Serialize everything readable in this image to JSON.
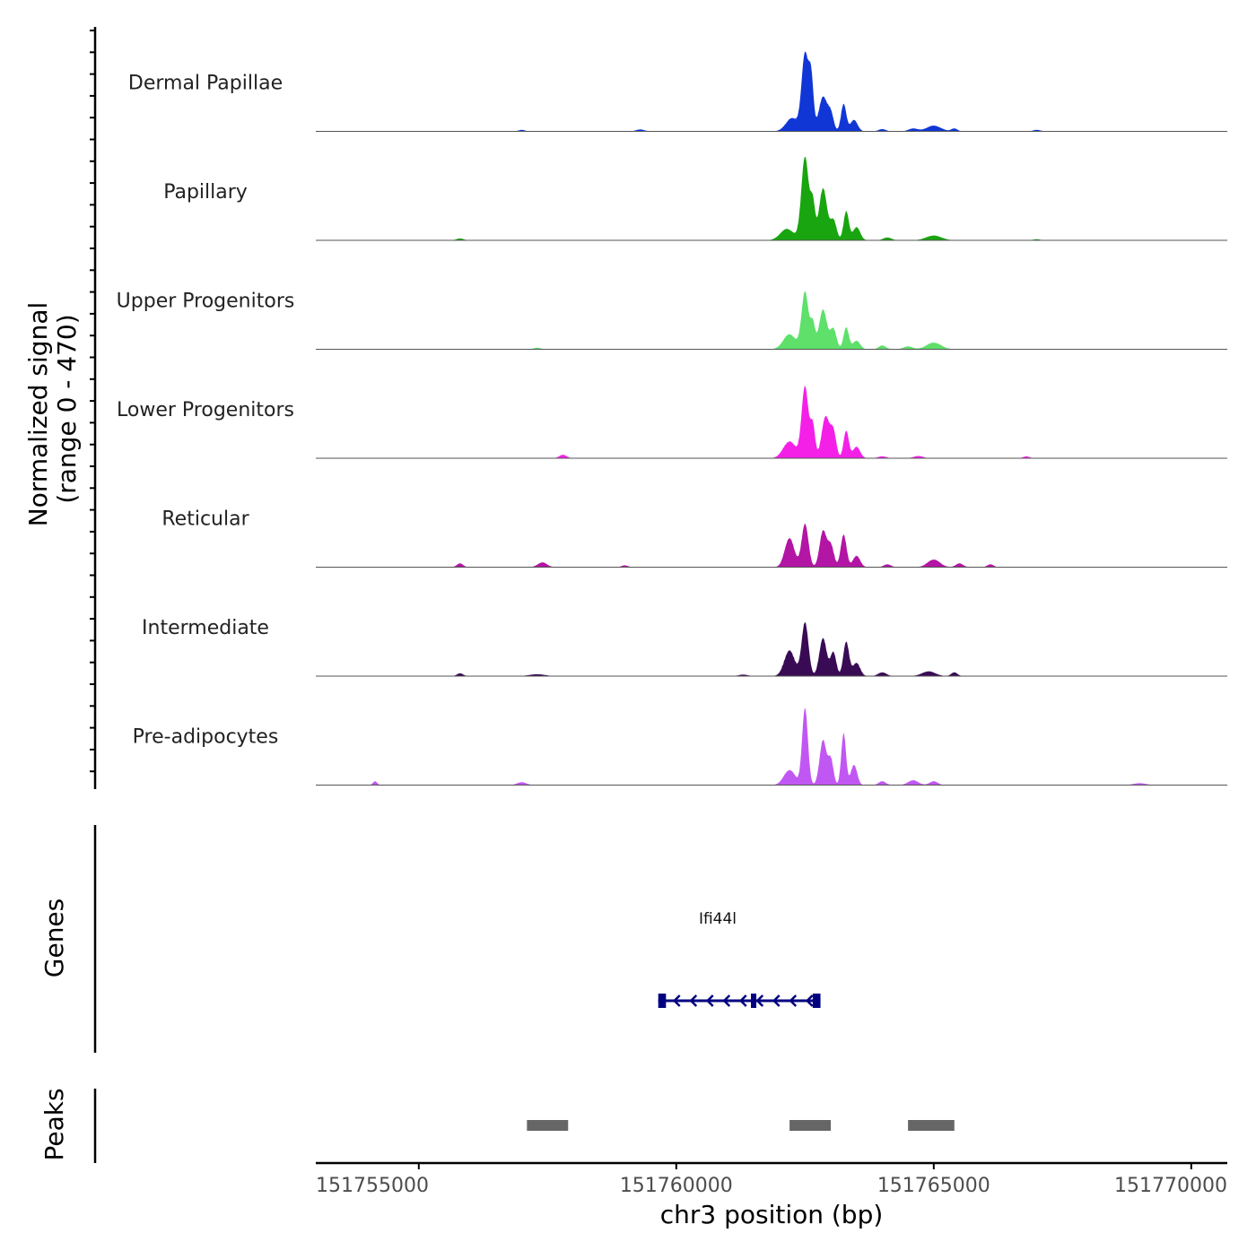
{
  "chart_data": {
    "type": "area",
    "y_axis_title": "Normalized signal",
    "y_axis_subtitle": "(range 0 - 470)",
    "y_range": [
      0,
      470
    ],
    "x_axis_title": "chr3 position (bp)",
    "x_range": [
      151753000,
      151770700
    ],
    "x_ticks": [
      151755000,
      151760000,
      151765000,
      151770000
    ],
    "x_tick_labels": [
      "151755000",
      "151760000",
      "151765000",
      "151770000"
    ],
    "tracks": [
      {
        "name": "Dermal Papillae",
        "color": "#1136d6",
        "peaks": [
          {
            "pos": 151762250,
            "height": 70,
            "width": 120
          },
          {
            "pos": 151762500,
            "height": 430,
            "width": 65
          },
          {
            "pos": 151762620,
            "height": 280,
            "width": 45
          },
          {
            "pos": 151762850,
            "height": 190,
            "width": 80
          },
          {
            "pos": 151763000,
            "height": 90,
            "width": 55
          },
          {
            "pos": 151763250,
            "height": 150,
            "width": 50
          },
          {
            "pos": 151763450,
            "height": 60,
            "width": 70
          },
          {
            "pos": 151764000,
            "height": 12,
            "width": 70
          },
          {
            "pos": 151764600,
            "height": 15,
            "width": 90
          },
          {
            "pos": 151765000,
            "height": 30,
            "width": 140
          },
          {
            "pos": 151765400,
            "height": 15,
            "width": 60
          },
          {
            "pos": 151757000,
            "height": 8,
            "width": 60
          },
          {
            "pos": 151759300,
            "height": 10,
            "width": 80
          },
          {
            "pos": 151767000,
            "height": 8,
            "width": 70
          }
        ]
      },
      {
        "name": "Papillary",
        "color": "#18a50f",
        "peaks": [
          {
            "pos": 151762150,
            "height": 60,
            "width": 130
          },
          {
            "pos": 151762500,
            "height": 470,
            "width": 70
          },
          {
            "pos": 151762650,
            "height": 200,
            "width": 45
          },
          {
            "pos": 151762850,
            "height": 290,
            "width": 75
          },
          {
            "pos": 151763050,
            "height": 110,
            "width": 60
          },
          {
            "pos": 151763300,
            "height": 160,
            "width": 50
          },
          {
            "pos": 151763500,
            "height": 70,
            "width": 70
          },
          {
            "pos": 151764100,
            "height": 15,
            "width": 80
          },
          {
            "pos": 151765000,
            "height": 25,
            "width": 150
          },
          {
            "pos": 151755800,
            "height": 10,
            "width": 70
          },
          {
            "pos": 151767000,
            "height": 6,
            "width": 70
          }
        ]
      },
      {
        "name": "Upper Progenitors",
        "color": "#5ee06a",
        "peaks": [
          {
            "pos": 151762200,
            "height": 80,
            "width": 120
          },
          {
            "pos": 151762500,
            "height": 320,
            "width": 65
          },
          {
            "pos": 151762650,
            "height": 140,
            "width": 45
          },
          {
            "pos": 151762850,
            "height": 220,
            "width": 75
          },
          {
            "pos": 151763050,
            "height": 110,
            "width": 60
          },
          {
            "pos": 151763300,
            "height": 120,
            "width": 50
          },
          {
            "pos": 151763500,
            "height": 45,
            "width": 70
          },
          {
            "pos": 151764000,
            "height": 20,
            "width": 70
          },
          {
            "pos": 151764500,
            "height": 15,
            "width": 90
          },
          {
            "pos": 151765000,
            "height": 35,
            "width": 140
          },
          {
            "pos": 151757300,
            "height": 8,
            "width": 70
          }
        ]
      },
      {
        "name": "Lower Progenitors",
        "color": "#f420e8",
        "peaks": [
          {
            "pos": 151762200,
            "height": 90,
            "width": 120
          },
          {
            "pos": 151762500,
            "height": 400,
            "width": 65
          },
          {
            "pos": 151762650,
            "height": 180,
            "width": 45
          },
          {
            "pos": 151762900,
            "height": 230,
            "width": 75
          },
          {
            "pos": 151763050,
            "height": 140,
            "width": 55
          },
          {
            "pos": 151763300,
            "height": 150,
            "width": 50
          },
          {
            "pos": 151763500,
            "height": 60,
            "width": 70
          },
          {
            "pos": 151764000,
            "height": 10,
            "width": 80
          },
          {
            "pos": 151764700,
            "height": 12,
            "width": 90
          },
          {
            "pos": 151757800,
            "height": 18,
            "width": 70
          },
          {
            "pos": 151766800,
            "height": 10,
            "width": 60
          }
        ]
      },
      {
        "name": "Reticular",
        "color": "#b315a5",
        "peaks": [
          {
            "pos": 151762200,
            "height": 160,
            "width": 90
          },
          {
            "pos": 151762500,
            "height": 240,
            "width": 65
          },
          {
            "pos": 151762850,
            "height": 200,
            "width": 65
          },
          {
            "pos": 151763000,
            "height": 120,
            "width": 60
          },
          {
            "pos": 151763250,
            "height": 180,
            "width": 55
          },
          {
            "pos": 151763500,
            "height": 60,
            "width": 70
          },
          {
            "pos": 151764100,
            "height": 15,
            "width": 70
          },
          {
            "pos": 151765000,
            "height": 40,
            "width": 120
          },
          {
            "pos": 151765500,
            "height": 20,
            "width": 70
          },
          {
            "pos": 151766100,
            "height": 15,
            "width": 60
          },
          {
            "pos": 151755800,
            "height": 20,
            "width": 60
          },
          {
            "pos": 151757400,
            "height": 25,
            "width": 90
          },
          {
            "pos": 151759000,
            "height": 10,
            "width": 60
          }
        ]
      },
      {
        "name": "Intermediate",
        "color": "#3a0b55",
        "peaks": [
          {
            "pos": 151762200,
            "height": 140,
            "width": 100
          },
          {
            "pos": 151762500,
            "height": 300,
            "width": 65
          },
          {
            "pos": 151762850,
            "height": 210,
            "width": 70
          },
          {
            "pos": 151763050,
            "height": 130,
            "width": 55
          },
          {
            "pos": 151763300,
            "height": 190,
            "width": 55
          },
          {
            "pos": 151763500,
            "height": 70,
            "width": 70
          },
          {
            "pos": 151764000,
            "height": 20,
            "width": 80
          },
          {
            "pos": 151764900,
            "height": 25,
            "width": 130
          },
          {
            "pos": 151765400,
            "height": 20,
            "width": 60
          },
          {
            "pos": 151755800,
            "height": 15,
            "width": 60
          },
          {
            "pos": 151757300,
            "height": 10,
            "width": 150
          },
          {
            "pos": 151761300,
            "height": 8,
            "width": 90
          }
        ]
      },
      {
        "name": "Pre-adipocytes",
        "color": "#c157f2",
        "peaks": [
          {
            "pos": 151762200,
            "height": 80,
            "width": 110
          },
          {
            "pos": 151762500,
            "height": 430,
            "width": 55
          },
          {
            "pos": 151762850,
            "height": 250,
            "width": 65
          },
          {
            "pos": 151763000,
            "height": 140,
            "width": 50
          },
          {
            "pos": 151763250,
            "height": 290,
            "width": 45
          },
          {
            "pos": 151763450,
            "height": 110,
            "width": 60
          },
          {
            "pos": 151764000,
            "height": 20,
            "width": 70
          },
          {
            "pos": 151764600,
            "height": 25,
            "width": 100
          },
          {
            "pos": 151765000,
            "height": 20,
            "width": 80
          },
          {
            "pos": 151754150,
            "height": 20,
            "width": 40
          },
          {
            "pos": 151757000,
            "height": 15,
            "width": 90
          },
          {
            "pos": 151769000,
            "height": 10,
            "width": 120
          }
        ]
      }
    ],
    "genes_track": {
      "label": "Genes",
      "gene_name": "Ifi44l",
      "strand": "-",
      "color": "#000080",
      "start": 151759650,
      "end": 151762800,
      "exons": [
        [
          151759650,
          151759800
        ],
        [
          151761450,
          151761550
        ],
        [
          151762650,
          151762800
        ]
      ]
    },
    "peaks_track": {
      "label": "Peaks",
      "color": "#666666",
      "regions": [
        [
          151757100,
          151757900
        ],
        [
          151762200,
          151763000
        ],
        [
          151764500,
          151765400
        ]
      ]
    }
  }
}
